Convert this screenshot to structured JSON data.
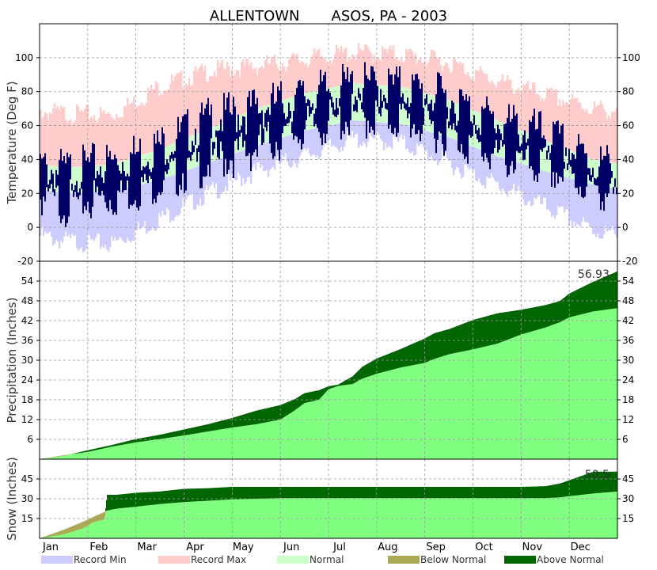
{
  "chart_title": "ALLENTOWN       ASOS, PA - 2003",
  "months": [
    "Jan",
    "Feb",
    "Mar",
    "Apr",
    "May",
    "Jun",
    "Jul",
    "Aug",
    "Sep",
    "Oct",
    "Nov",
    "Dec"
  ],
  "legend": [
    {
      "label": "Record Min",
      "color": "#ccccff"
    },
    {
      "label": "Record Max",
      "color": "#ffcccc"
    },
    {
      "label": "Normal",
      "color": "#ccffcc"
    },
    {
      "label": "Below Normal",
      "color": "#aaaa55"
    },
    {
      "label": "Above Normal",
      "color": "#006600"
    }
  ],
  "colors": {
    "observed_temp": "#000066",
    "normal_precip": "#80ff80",
    "grid": "#999999"
  },
  "chart_data": [
    {
      "type": "area",
      "panel": "temperature",
      "ylabel": "Temperature (Deg F)",
      "ylim": [
        -20,
        120
      ],
      "yticks": [
        -20,
        0,
        20,
        40,
        60,
        80,
        100
      ],
      "x": "month start",
      "series": [
        {
          "name": "Record Min",
          "month_values": [
            -8,
            -10,
            5,
            20,
            33,
            42,
            52,
            50,
            38,
            25,
            12,
            -2
          ]
        },
        {
          "name": "Record Max",
          "month_values": [
            67,
            66,
            83,
            92,
            95,
            99,
            103,
            102,
            97,
            86,
            78,
            70
          ]
        },
        {
          "name": "Normal Low",
          "month_values": [
            20,
            21,
            28,
            38,
            48,
            57,
            63,
            61,
            53,
            42,
            33,
            25
          ]
        },
        {
          "name": "Normal High",
          "month_values": [
            35,
            37,
            46,
            58,
            70,
            79,
            85,
            83,
            75,
            63,
            51,
            40
          ]
        },
        {
          "name": "Observed High",
          "month_values": [
            33,
            38,
            48,
            63,
            70,
            77,
            84,
            83,
            76,
            62,
            55,
            38
          ]
        },
        {
          "name": "Observed Low",
          "month_values": [
            14,
            18,
            28,
            38,
            47,
            58,
            65,
            64,
            55,
            42,
            35,
            24
          ]
        }
      ]
    },
    {
      "type": "area",
      "panel": "precipitation",
      "ylabel": "Precipitation (Inches)",
      "ylim": [
        0,
        60
      ],
      "yticks": [
        6,
        12,
        18,
        24,
        30,
        36,
        42,
        48,
        54
      ],
      "total_label": "56.93",
      "x_months": [
        1,
        1.5,
        2,
        2.5,
        3,
        3.5,
        4,
        4.5,
        5,
        5.5,
        6,
        6.3,
        6.5,
        6.8,
        7,
        7.2,
        7.5,
        7.7,
        8,
        8.5,
        9,
        9.2,
        9.5,
        10,
        10.5,
        11,
        11.5,
        11.8,
        12,
        12.5,
        13
      ],
      "series": [
        {
          "name": "Observed",
          "values": [
            0,
            1.2,
            2.2,
            3.8,
            5.1,
            6.1,
            7.2,
            8.4,
            9.6,
            10.6,
            12.0,
            14.8,
            17.0,
            18.0,
            21.2,
            22.2,
            22.8,
            24.4,
            25.9,
            27.8,
            29.2,
            30.4,
            31.8,
            33.3,
            35.0,
            37.8,
            39.9,
            41.5,
            43.0,
            44.8,
            45.8
          ]
        },
        {
          "name": "Normal",
          "values": [
            0,
            1.0,
            2.7,
            4.3,
            6.1,
            7.4,
            9.0,
            10.6,
            12.5,
            14.7,
            16.4,
            18.2,
            20.0,
            20.9,
            22.1,
            22.6,
            25.1,
            28.0,
            30.5,
            33.4,
            36.6,
            38.2,
            39.4,
            42.2,
            44.2,
            45.3,
            46.7,
            47.9,
            50.2,
            53.8,
            56.93
          ]
        }
      ]
    },
    {
      "type": "area",
      "panel": "snow",
      "ylabel": "Snow (Inches)",
      "ylim": [
        0,
        60
      ],
      "yticks": [
        15,
        30,
        45
      ],
      "total_label": "50.5",
      "x_months": [
        1,
        1.5,
        1.9,
        2.1,
        2.35,
        2.4,
        2.6,
        3,
        3.5,
        4,
        4.5,
        5,
        6,
        7,
        8,
        9,
        10,
        11,
        11.5,
        11.8,
        12,
        12.5,
        13
      ],
      "series": [
        {
          "name": "Observed",
          "values": [
            0,
            6.5,
            12.5,
            16.0,
            20.0,
            21.0,
            22.5,
            24.0,
            26.0,
            27.5,
            28.5,
            29.5,
            30.5,
            30.5,
            30.5,
            30.5,
            30.5,
            30.5,
            30.5,
            31.0,
            32.0,
            34.0,
            35.5
          ]
        },
        {
          "name": "Normal",
          "values": [
            0,
            3.0,
            7.5,
            12.0,
            14.5,
            33.0,
            33.0,
            34.5,
            35.5,
            37.5,
            38.0,
            39.0,
            39.0,
            39.0,
            39.0,
            39.0,
            39.0,
            39.0,
            39.5,
            41.5,
            44.0,
            50.5,
            50.5
          ]
        }
      ]
    }
  ]
}
